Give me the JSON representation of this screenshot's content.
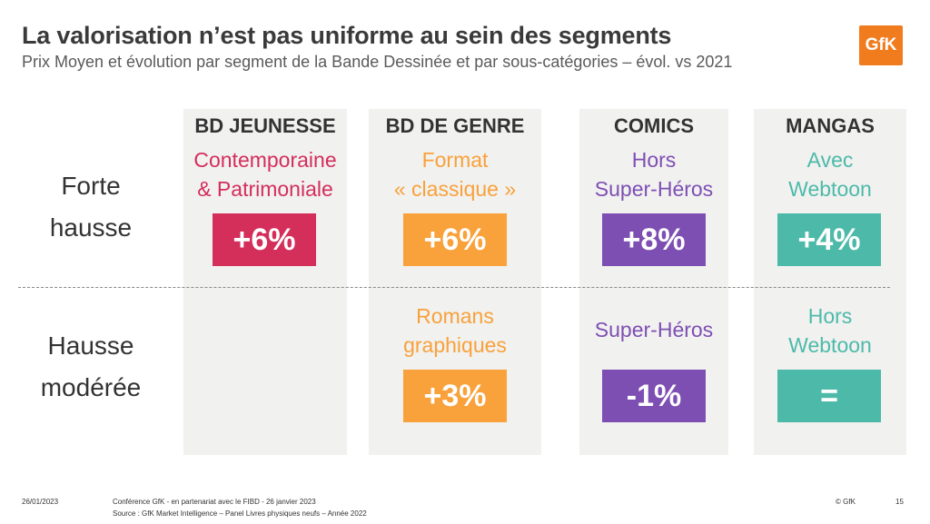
{
  "title": "La valorisation n’est pas uniforme au sein des segments",
  "subtitle": "Prix Moyen et évolution par segment de la Bande Dessinée et par sous-catégories – évol. vs 2021",
  "logo_text": "GfK",
  "rows": [
    "Forte hausse",
    "Hausse modérée"
  ],
  "columns": [
    {
      "header": "BD JEUNESSE",
      "color": "#d42e5b",
      "top": {
        "label1": "Contemporaine",
        "label2": "& Patrimoniale",
        "value": "+6%"
      },
      "bottom": {
        "label1": "",
        "label2": "",
        "value": ""
      }
    },
    {
      "header": "BD DE GENRE",
      "color": "#f9a13a",
      "top": {
        "label1": "Format",
        "label2": "« classique »",
        "value": "+6%"
      },
      "bottom": {
        "label1": "Romans",
        "label2": "graphiques",
        "value": "+3%"
      }
    },
    {
      "header": "COMICS",
      "color": "#7e4fb3",
      "top": {
        "label1": "Hors",
        "label2": "Super-Héros",
        "value": "+8%"
      },
      "bottom": {
        "label1": "Super-Héros",
        "label2": "",
        "value": "-1%"
      }
    },
    {
      "header": "MANGAS",
      "color": "#4dbaa9",
      "top": {
        "label1": "Avec",
        "label2": "Webtoon",
        "value": "+4%"
      },
      "bottom": {
        "label1": "Hors",
        "label2": "Webtoon",
        "value": "="
      }
    }
  ],
  "footer": {
    "date": "26/01/2023",
    "conference": "Conférence GfK - en partenariat avec le FIBD - 26 janvier 2023",
    "source": "Source : GfK Market Intelligence – Panel Livres physiques neufs – Année 2022",
    "copyright": "© GfK",
    "page": "15"
  }
}
